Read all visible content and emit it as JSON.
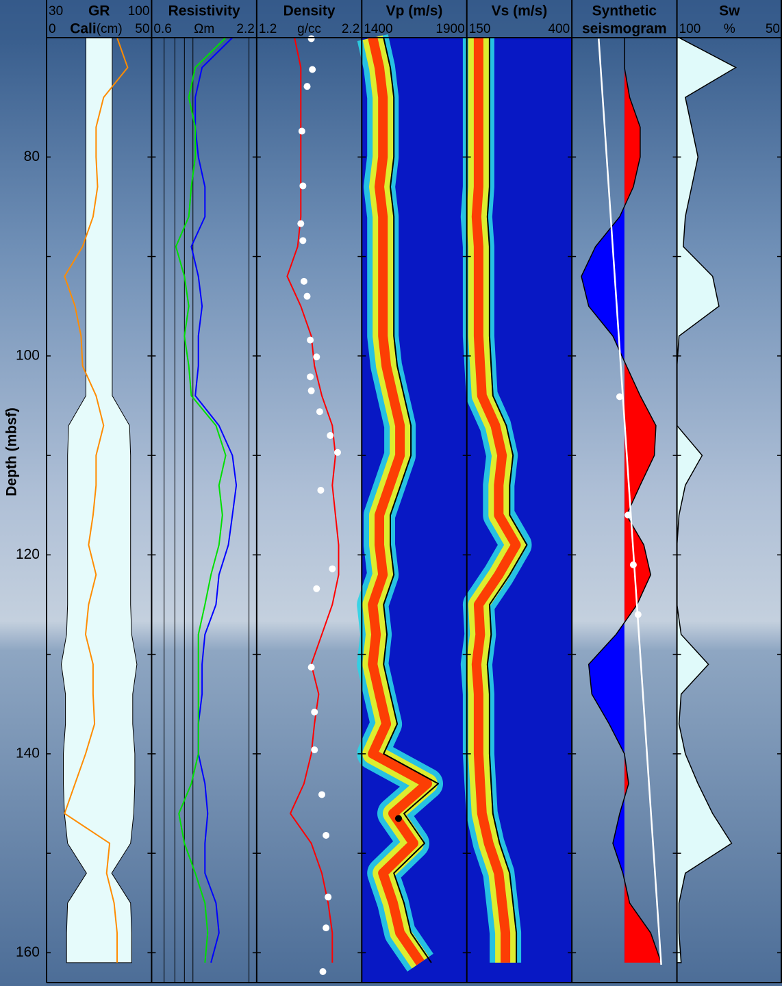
{
  "chart_data": {
    "type": "well_log",
    "ylabel": "Depth (mbsf)",
    "ylim": [
      68,
      163
    ],
    "yticks": [
      80,
      100,
      120,
      140,
      160
    ],
    "yminor": [
      90,
      110,
      130,
      150
    ],
    "depths": [
      68,
      71,
      74,
      77,
      80,
      83,
      86,
      89,
      92,
      95,
      98,
      101,
      104,
      107,
      110,
      113,
      116,
      119,
      122,
      125,
      128,
      131,
      134,
      137,
      140,
      143,
      146,
      149,
      152,
      155,
      158,
      161
    ],
    "tracks": [
      {
        "type": "line",
        "series": [
          {
            "name": "Cali",
            "unit": "(cm)",
            "style": "symmetric_fill",
            "color": "#e6fbfb",
            "xlim": [
              0,
              50
            ],
            "xticks": [
              0,
              50
            ],
            "values": [
              12.5,
              12.5,
              12.5,
              12.5,
              12.5,
              12.5,
              12.5,
              12.5,
              12.5,
              12.5,
              12.5,
              12.5,
              12.5,
              29,
              30,
              30,
              30,
              30,
              30,
              30,
              31,
              36,
              32,
              32,
              34,
              34,
              33,
              30,
              12,
              30,
              31,
              31
            ]
          },
          {
            "name": "GR",
            "style": "line",
            "color": "#ff8c00",
            "xlim": [
              30,
              100
            ],
            "xticks": [
              30,
              100
            ],
            "values": [
              77,
              84,
              68,
              63,
              63,
              64,
              61,
              54,
              42,
              49,
              53,
              54,
              63,
              68,
              63,
              63,
              61,
              58,
              63,
              58,
              56,
              61,
              61,
              62,
              56,
              49,
              42,
              72,
              70,
              75,
              77,
              77
            ]
          }
        ]
      },
      {
        "type": "line",
        "title": "Resistivity",
        "unit": "Ωm",
        "log": true,
        "xlim": [
          0.6,
          2.2
        ],
        "xticks": [
          0.6,
          2.2
        ],
        "xgrid": [
          0.7,
          0.8,
          0.9,
          1,
          2
        ],
        "series": [
          {
            "style": "line",
            "color": "#0000ff",
            "values": [
              1.63,
              1.12,
              1.03,
              1.03,
              1.07,
              1.16,
              1.16,
              0.98,
              1.07,
              1.12,
              1.07,
              1.07,
              1.03,
              1.38,
              1.63,
              1.71,
              1.63,
              1.55,
              1.38,
              1.33,
              1.16,
              1.12,
              1.12,
              1.07,
              1.07,
              1.16,
              1.2,
              1.16,
              1.16,
              1.33,
              1.38,
              1.25
            ]
          },
          {
            "style": "line",
            "color": "#00e000",
            "values": [
              1.5,
              1.03,
              0.95,
              1.03,
              1.03,
              0.98,
              0.95,
              0.81,
              0.9,
              0.95,
              0.9,
              0.95,
              0.98,
              1.33,
              1.5,
              1.38,
              1.44,
              1.38,
              1.25,
              1.16,
              1.07,
              1.07,
              1.07,
              1.07,
              1.07,
              0.98,
              0.84,
              0.9,
              1.03,
              1.16,
              1.2,
              1.16
            ]
          }
        ]
      },
      {
        "type": "line",
        "title": "Density",
        "unit": "g/cc",
        "xlim": [
          1.2,
          2.2
        ],
        "xticks": [
          1.2,
          2.2
        ],
        "series": [
          {
            "style": "line",
            "color": "#ff0000",
            "values": [
              1.56,
              1.62,
              1.62,
              1.62,
              1.62,
              1.62,
              1.62,
              1.59,
              1.49,
              1.62,
              1.72,
              1.75,
              1.82,
              1.92,
              1.95,
              1.92,
              1.95,
              1.98,
              1.98,
              1.92,
              1.82,
              1.72,
              1.79,
              1.75,
              1.72,
              1.65,
              1.52,
              1.72,
              1.82,
              1.88,
              1.92,
              1.92
            ]
          }
        ],
        "points": {
          "color": "#ffffff",
          "depths": [
            68.1,
            71.2,
            72.9,
            77.4,
            82.9,
            86.7,
            88.4,
            92.5,
            94.0,
            98.4,
            100.1,
            102.1,
            103.5,
            105.6,
            108.0,
            109.7,
            113.5,
            121.4,
            123.4,
            131.3,
            135.8,
            139.6,
            144.1,
            148.2,
            154.4,
            157.5,
            161.9
          ],
          "values": [
            1.72,
            1.73,
            1.68,
            1.63,
            1.64,
            1.62,
            1.64,
            1.65,
            1.68,
            1.71,
            1.77,
            1.71,
            1.72,
            1.8,
            1.9,
            1.97,
            1.81,
            1.92,
            1.77,
            1.72,
            1.75,
            1.75,
            1.82,
            1.86,
            1.88,
            1.86,
            1.83
          ]
        }
      },
      {
        "type": "semblance",
        "title": "Vp (m/s)",
        "xlim": [
          1400,
          1900
        ],
        "xticks": [
          1400,
          1900
        ],
        "series": [
          {
            "style": "line",
            "color": "#000000",
            "values": [
              1504,
              1536,
              1553,
              1553,
              1553,
              1536,
              1553,
              1553,
              1553,
              1553,
              1553,
              1569,
              1601,
              1634,
              1634,
              1585,
              1536,
              1536,
              1553,
              1504,
              1520,
              1504,
              1536,
              1569,
              1504,
              1764,
              1601,
              1699,
              1553,
              1601,
              1634,
              1731
            ]
          }
        ],
        "points": {
          "color": "#000000",
          "depths": [
            146.5
          ],
          "values": [
            1575
          ]
        }
      },
      {
        "type": "semblance",
        "title": "Vs (m/s)",
        "xlim": [
          150,
          400
        ],
        "xticks": [
          150,
          400
        ],
        "series": [
          {
            "style": "line",
            "color": "#000000",
            "values": [
              204,
              204,
              204,
              204,
              204,
              204,
              199,
              204,
              204,
              204,
              204,
              208,
              212,
              244,
              260,
              252,
              252,
              293,
              252,
              204,
              208,
              199,
              204,
              204,
              204,
              208,
              212,
              228,
              252,
              260,
              268,
              268
            ]
          }
        ]
      },
      {
        "type": "wiggle",
        "title": [
          "Synthetic",
          "seismogram"
        ],
        "xlim": [
          -1,
          1
        ],
        "series": [
          {
            "style": "wiggle",
            "color": "#ff0000",
            "negative_color": "#0000ff",
            "values": [
              0,
              0,
              0.1,
              0.3,
              0.3,
              0.17,
              -0.09,
              -0.55,
              -0.82,
              -0.68,
              -0.22,
              0.04,
              0.3,
              0.6,
              0.57,
              0.3,
              0.04,
              0.37,
              0.5,
              0.24,
              -0.16,
              -0.68,
              -0.62,
              -0.29,
              0,
              0.08,
              -0.09,
              -0.22,
              -0.03,
              0.1,
              0.5,
              0.7
            ]
          }
        ],
        "trend": {
          "color": "#ffffff",
          "depths": [
            68.1,
            161.2
          ],
          "values": [
            -0.49,
            0.7
          ]
        },
        "points": {
          "color": "#ffffff",
          "depths": [
            104.1,
            116,
            121,
            126
          ],
          "values": [
            -0.09,
            0.07,
            0.17,
            0.26
          ]
        }
      },
      {
        "type": "line",
        "title": "Sw",
        "unit": "%",
        "xlim": [
          100,
          50
        ],
        "xticks": [
          100,
          50
        ],
        "series": [
          {
            "style": "fill_left",
            "color": "#e0fafa",
            "values": [
              99,
              72,
              96,
              93,
              90,
              93,
              96,
              97,
              83,
              80,
              99,
              100,
              100,
              100,
              88,
              96,
              99,
              100,
              100,
              100,
              98,
              85,
              98,
              99,
              96,
              90,
              83,
              74,
              96,
              99,
              99,
              98
            ]
          }
        ]
      }
    ]
  }
}
